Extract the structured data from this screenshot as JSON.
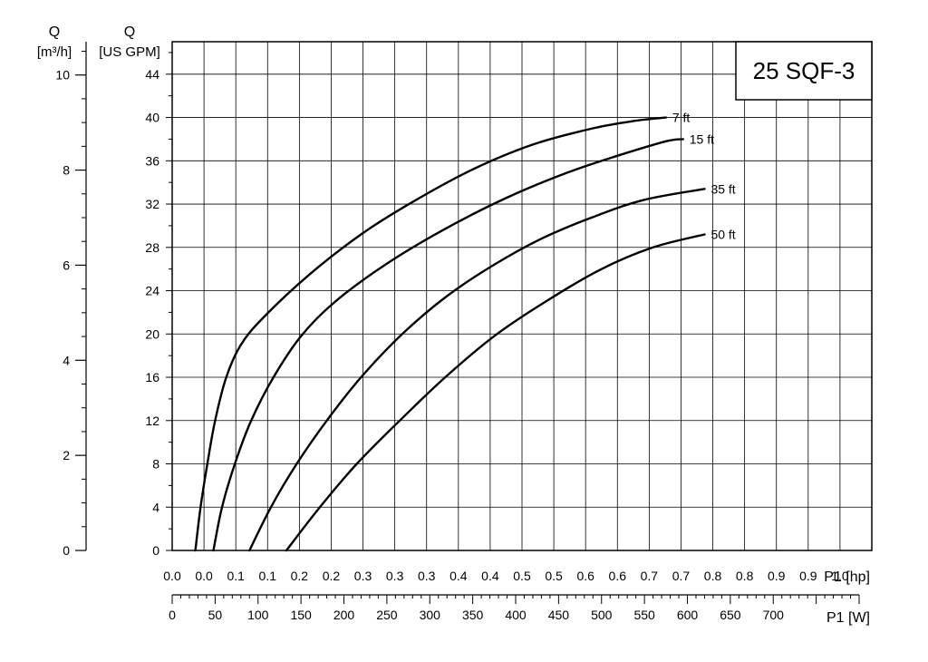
{
  "chart_data": {
    "type": "line",
    "title": "25 SQF-3",
    "y_primary": {
      "title": "Q",
      "unit": "[US GPM]",
      "ticks": [
        0,
        4,
        8,
        12,
        16,
        20,
        24,
        28,
        32,
        36,
        40,
        44
      ],
      "range": [
        0,
        47
      ]
    },
    "y_secondary": {
      "title": "Q",
      "unit": "[m³/h]",
      "ticks": [
        0,
        2,
        4,
        6,
        8,
        10
      ],
      "range": [
        0,
        10.7
      ]
    },
    "x_hp": {
      "label": "P1 [hp]",
      "tick_labels": [
        "0.0",
        "0.0",
        "0.1",
        "0.1",
        "0.2",
        "0.2",
        "0.3",
        "0.3",
        "0.3",
        "0.4",
        "0.4",
        "0.5",
        "0.5",
        "0.6",
        "0.6",
        "0.7",
        "0.7",
        "0.8",
        "0.8",
        "0.9",
        "0.9",
        "1.0"
      ]
    },
    "x_w": {
      "label": "P1 [W]",
      "ticks": [
        0,
        50,
        100,
        150,
        200,
        250,
        300,
        350,
        400,
        450,
        500,
        550,
        600,
        650,
        700
      ],
      "range": [
        0,
        800
      ]
    },
    "series": [
      {
        "name": "7 ft",
        "points": [
          [
            27,
            0
          ],
          [
            33,
            4
          ],
          [
            41,
            8
          ],
          [
            50,
            12
          ],
          [
            63,
            16
          ],
          [
            80,
            19
          ],
          [
            106,
            21.5
          ],
          [
            160,
            25.5
          ],
          [
            220,
            29.2
          ],
          [
            280,
            32.2
          ],
          [
            350,
            35.2
          ],
          [
            420,
            37.5
          ],
          [
            490,
            39
          ],
          [
            540,
            39.7
          ],
          [
            575,
            40
          ]
        ]
      },
      {
        "name": "15 ft",
        "points": [
          [
            48,
            0
          ],
          [
            58,
            4
          ],
          [
            73,
            8
          ],
          [
            92,
            12
          ],
          [
            118,
            16
          ],
          [
            150,
            19.8
          ],
          [
            190,
            23
          ],
          [
            250,
            26.5
          ],
          [
            320,
            29.8
          ],
          [
            390,
            32.6
          ],
          [
            460,
            34.9
          ],
          [
            520,
            36.5
          ],
          [
            575,
            37.8
          ],
          [
            595,
            38
          ]
        ]
      },
      {
        "name": "35 ft",
        "points": [
          [
            90,
            0
          ],
          [
            115,
            4
          ],
          [
            145,
            8
          ],
          [
            180,
            12
          ],
          [
            220,
            16
          ],
          [
            268,
            20
          ],
          [
            320,
            23.5
          ],
          [
            375,
            26.4
          ],
          [
            430,
            28.8
          ],
          [
            490,
            30.8
          ],
          [
            550,
            32.4
          ],
          [
            620,
            33.4
          ]
        ]
      },
      {
        "name": "50 ft",
        "points": [
          [
            133,
            0
          ],
          [
            172,
            4
          ],
          [
            215,
            8
          ],
          [
            265,
            12
          ],
          [
            318,
            16
          ],
          [
            375,
            19.8
          ],
          [
            435,
            23
          ],
          [
            500,
            26
          ],
          [
            560,
            28
          ],
          [
            620,
            29.2
          ]
        ]
      }
    ]
  }
}
